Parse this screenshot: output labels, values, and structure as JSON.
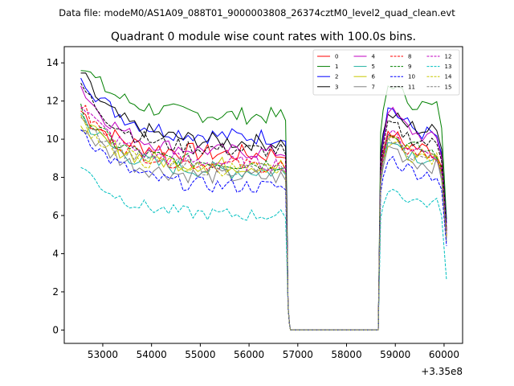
{
  "chart_data": {
    "type": "line",
    "suptitle": "Data file: modeM0/AS1A09_088T01_9000003808_26374cztM0_level2_quad_clean.evt",
    "title": "Quadrant 0 module wise count rates with 100.0s bins.",
    "xlabel": "",
    "ylabel": "",
    "x_offset_label": "+3.35e8",
    "xlim": [
      52210,
      60380
    ],
    "ylim": [
      -0.7,
      14.85
    ],
    "x_ticks": [
      53000,
      54000,
      55000,
      56000,
      57000,
      58000,
      59000,
      60000
    ],
    "x_tick_labels": [
      "53000",
      "54000",
      "55000",
      "56000",
      "57000",
      "58000",
      "59000",
      "60000"
    ],
    "y_ticks": [
      0,
      2,
      4,
      6,
      8,
      10,
      12,
      14
    ],
    "y_tick_labels": [
      "0",
      "2",
      "4",
      "6",
      "8",
      "10",
      "12",
      "14"
    ],
    "x_segments": {
      "seg1_start": 52550,
      "seg1_end": 56750,
      "gap_start": 56850,
      "gap_end": 58650,
      "seg2_start": 58750,
      "seg2_end": 60050,
      "step": 100
    },
    "legend": {
      "location": "upper right",
      "columns": 4
    },
    "series": [
      {
        "name": "0",
        "color": "#ff0000",
        "dash": "solid",
        "level1": 9.2,
        "start1": 11.5,
        "level2": 9.3,
        "peak2": 10.2,
        "end": 5.0,
        "jitter": 0.5
      },
      {
        "name": "1",
        "color": "#008000",
        "dash": "solid",
        "level1": 11.2,
        "start1": 14.0,
        "level2": 11.5,
        "peak2": 12.8,
        "end": 5.8,
        "jitter": 0.45
      },
      {
        "name": "2",
        "color": "#0000ff",
        "dash": "solid",
        "level1": 10.1,
        "start1": 13.5,
        "level2": 10.0,
        "peak2": 11.6,
        "end": 5.6,
        "jitter": 0.45
      },
      {
        "name": "3",
        "color": "#000000",
        "dash": "solid",
        "level1": 9.8,
        "start1": 13.5,
        "level2": 10.3,
        "peak2": 11.2,
        "end": 5.3,
        "jitter": 0.45
      },
      {
        "name": "4",
        "color": "#c000c0",
        "dash": "solid",
        "level1": 9.3,
        "start1": 12.8,
        "level2": 9.8,
        "peak2": 11.5,
        "end": 5.2,
        "jitter": 0.4
      },
      {
        "name": "5",
        "color": "#20b0a0",
        "dash": "solid",
        "level1": 8.3,
        "start1": 11.3,
        "level2": 8.8,
        "peak2": 10.0,
        "end": 4.8,
        "jitter": 0.45
      },
      {
        "name": "6",
        "color": "#c8c800",
        "dash": "solid",
        "level1": 8.6,
        "start1": 11.0,
        "level2": 9.0,
        "peak2": 10.0,
        "end": 4.9,
        "jitter": 0.45
      },
      {
        "name": "7",
        "color": "#808080",
        "dash": "solid",
        "level1": 8.0,
        "start1": 10.8,
        "level2": 8.5,
        "peak2": 9.6,
        "end": 4.6,
        "jitter": 0.45
      },
      {
        "name": "8",
        "color": "#ff0000",
        "dash": "dashed",
        "level1": 8.6,
        "start1": 11.8,
        "level2": 9.0,
        "peak2": 10.0,
        "end": 4.9,
        "jitter": 0.4
      },
      {
        "name": "9",
        "color": "#008000",
        "dash": "dashed",
        "level1": 8.7,
        "start1": 11.5,
        "level2": 9.2,
        "peak2": 10.2,
        "end": 5.0,
        "jitter": 0.4
      },
      {
        "name": "10",
        "color": "#0000ff",
        "dash": "dashed",
        "level1": 7.5,
        "start1": 10.7,
        "level2": 8.0,
        "peak2": 9.0,
        "end": 4.4,
        "jitter": 0.4
      },
      {
        "name": "11",
        "color": "#000000",
        "dash": "dashed",
        "level1": 9.4,
        "start1": 12.9,
        "level2": 9.6,
        "peak2": 10.8,
        "end": 5.2,
        "jitter": 0.4
      },
      {
        "name": "12",
        "color": "#c000c0",
        "dash": "dashed",
        "level1": 8.7,
        "start1": 12.0,
        "level2": 9.1,
        "peak2": 10.3,
        "end": 5.0,
        "jitter": 0.4
      },
      {
        "name": "13",
        "color": "#00c0c0",
        "dash": "dashed",
        "level1": 6.0,
        "start1": 8.7,
        "level2": 6.5,
        "peak2": 7.4,
        "end": 2.6,
        "jitter": 0.35
      },
      {
        "name": "14",
        "color": "#c8c800",
        "dash": "dashed",
        "level1": 8.4,
        "start1": 11.0,
        "level2": 8.8,
        "peak2": 9.8,
        "end": 4.8,
        "jitter": 0.4
      },
      {
        "name": "15",
        "color": "#808080",
        "dash": "dashed",
        "level1": 8.4,
        "start1": 11.5,
        "level2": 8.8,
        "peak2": 9.9,
        "end": 4.8,
        "jitter": 0.4
      }
    ]
  }
}
